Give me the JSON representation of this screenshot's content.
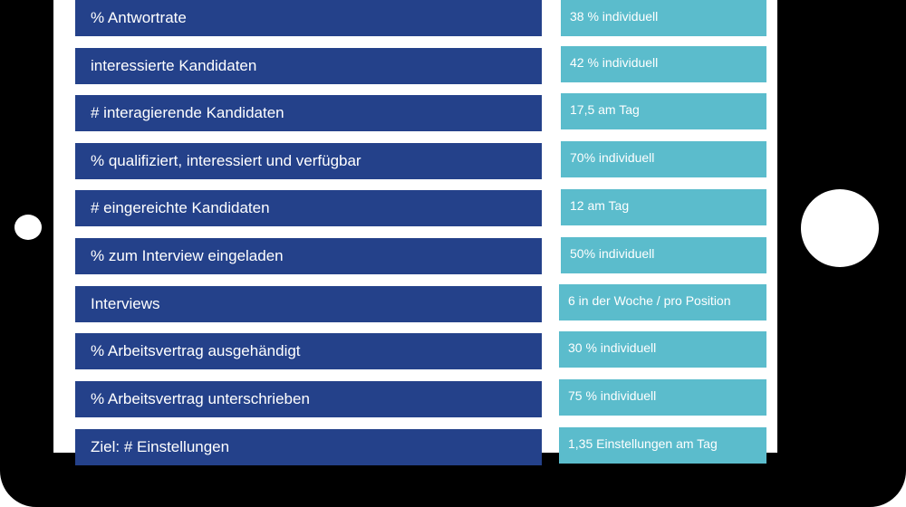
{
  "metrics": [
    {
      "label": "% Antwortrate",
      "value": "38 % individuell"
    },
    {
      "label": "interessierte Kandidaten",
      "value": "42 % individuell"
    },
    {
      "label": "# interagierende Kandidaten",
      "value": "17,5 am Tag"
    },
    {
      "label": "% qualifiziert, interessiert und verfügbar",
      "value": "70% individuell"
    },
    {
      "label": "# eingereichte Kandidaten",
      "value": "12 am Tag"
    },
    {
      "label": "% zum Interview eingeladen",
      "value": "50% individuell"
    },
    {
      "label": "Interviews",
      "value": "6 in der Woche / pro Position"
    },
    {
      "label": "% Arbeitsvertrag ausgehändigt",
      "value": "30 % individuell"
    },
    {
      "label": "% Arbeitsvertrag unterschrieben",
      "value": "75 % individuell"
    },
    {
      "label": "Ziel: # Einstellungen",
      "value": "1,35 Einstellungen am Tag"
    }
  ],
  "colors": {
    "label_bg": "#24418a",
    "value_bg": "#5bbccc",
    "frame": "#000000"
  }
}
